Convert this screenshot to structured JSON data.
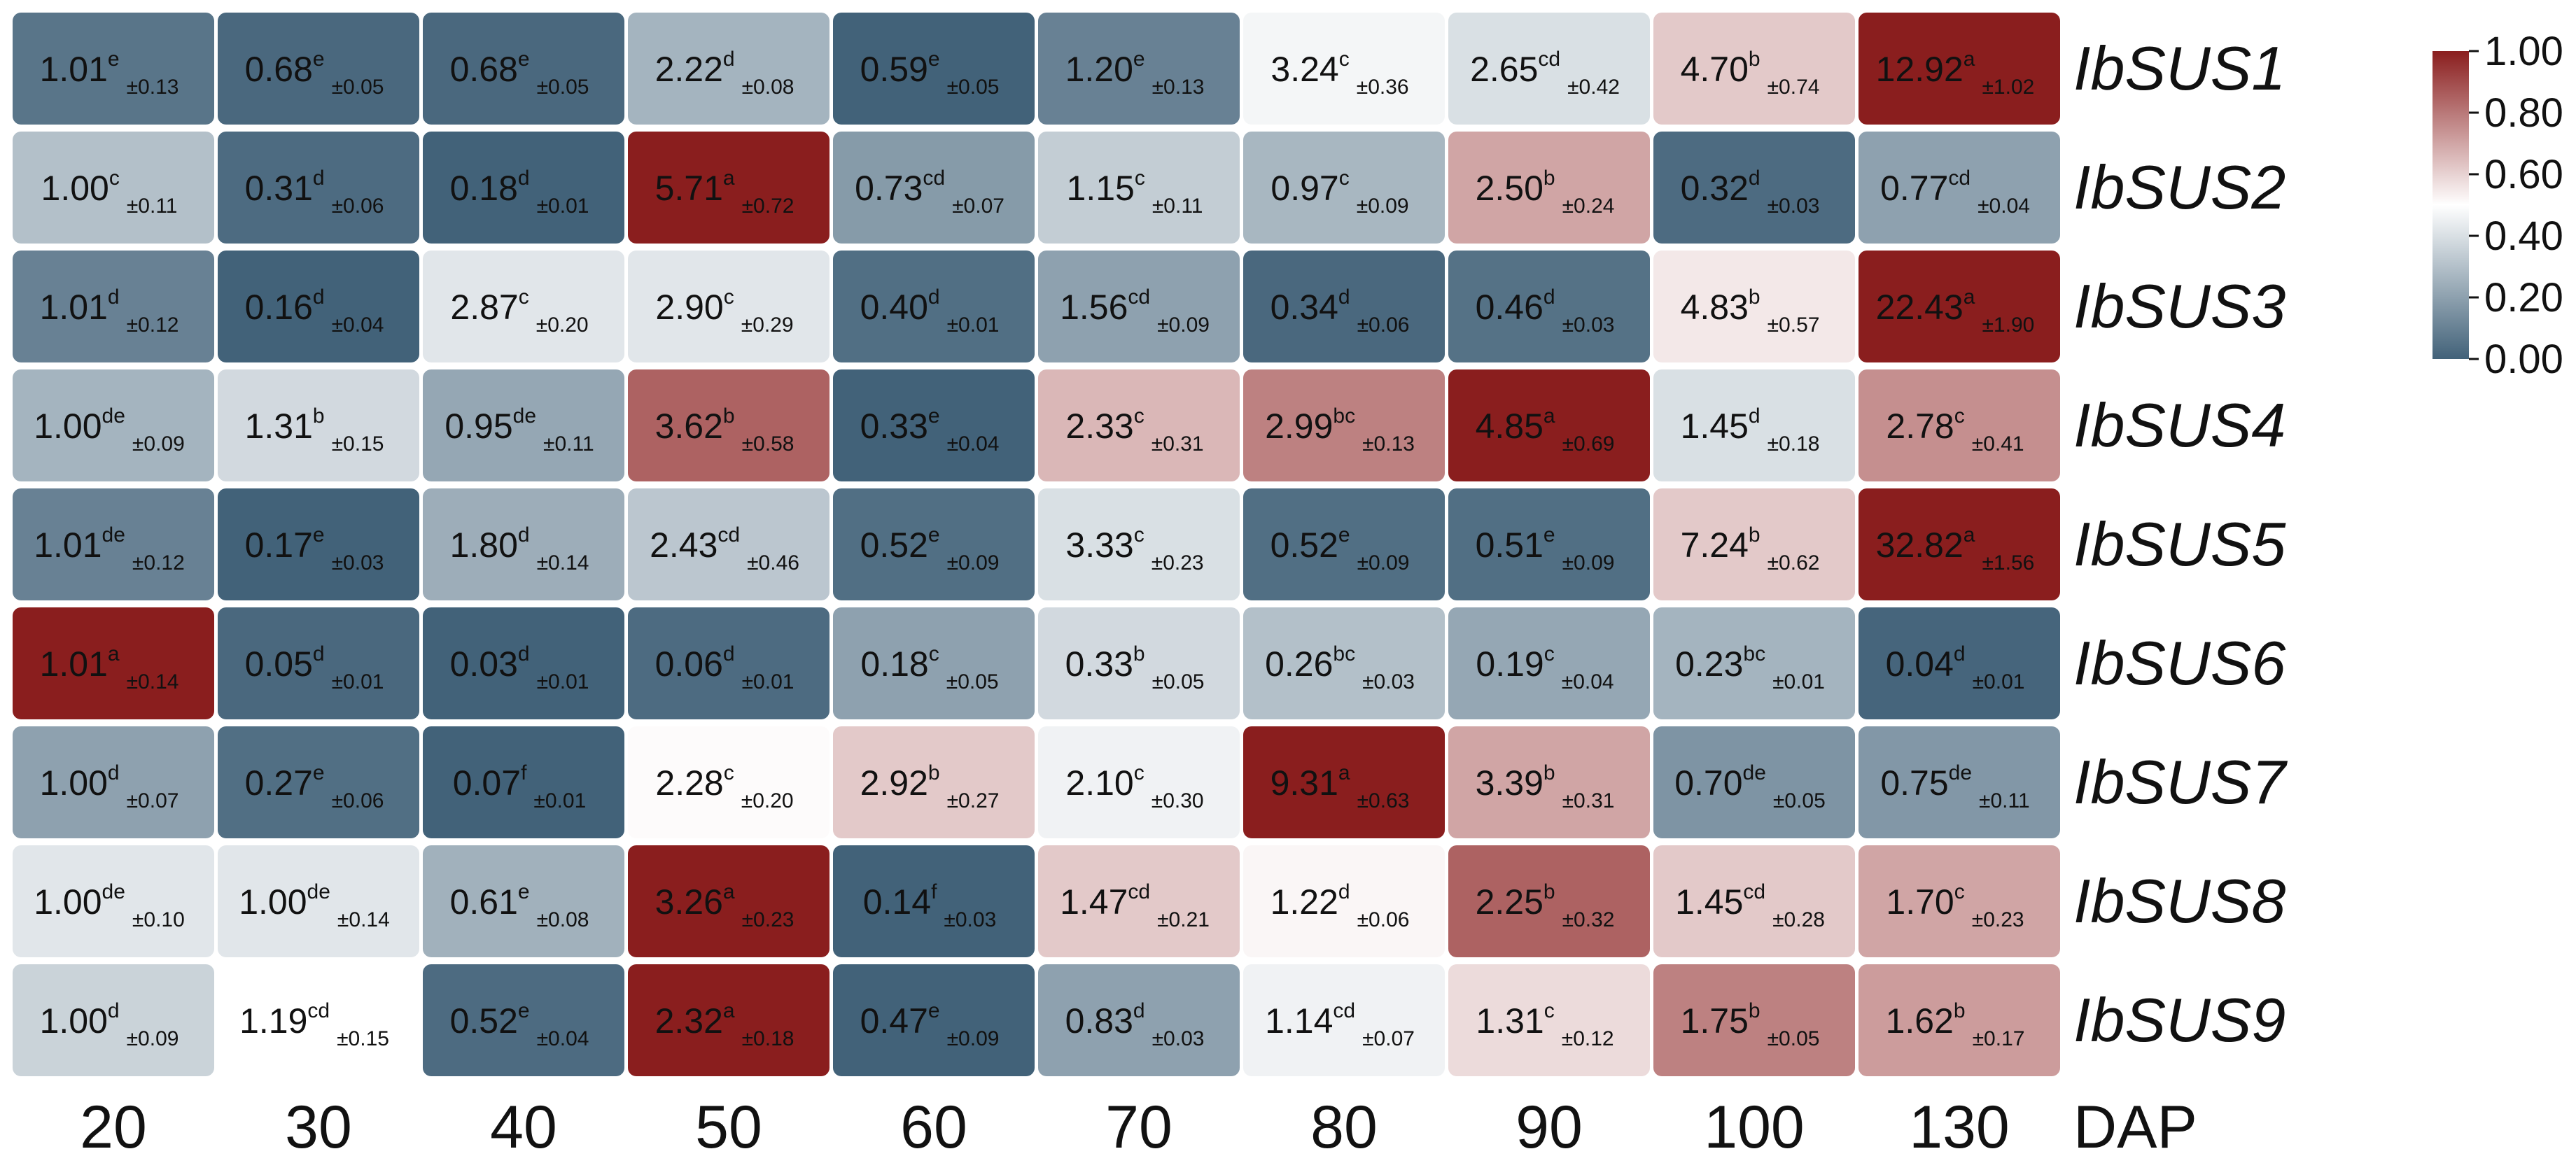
{
  "chart_data": {
    "type": "heatmap",
    "x_categories": [
      "20",
      "30",
      "40",
      "50",
      "60",
      "70",
      "80",
      "90",
      "100",
      "130"
    ],
    "x_axis_label": "DAP",
    "y_categories": [
      "IbSUS1",
      "IbSUS2",
      "IbSUS3",
      "IbSUS4",
      "IbSUS5",
      "IbSUS6",
      "IbSUS7",
      "IbSUS8",
      "IbSUS9"
    ],
    "colorbar": {
      "min": 0.0,
      "max": 1.0,
      "ticks": [
        "1.00",
        "0.80",
        "0.60",
        "0.40",
        "0.20",
        "0.00"
      ],
      "colors": [
        "#426279",
        "#ffffff",
        "#8a1e1e"
      ]
    },
    "rows": [
      {
        "gene": "IbSUS1",
        "cells": [
          {
            "value": "1.01",
            "sig": "e",
            "sd": "±0.13",
            "norm": 0.06
          },
          {
            "value": "0.68",
            "sig": "e",
            "sd": "±0.05",
            "norm": 0.02
          },
          {
            "value": "0.68",
            "sig": "e",
            "sd": "±0.05",
            "norm": 0.02
          },
          {
            "value": "2.22",
            "sig": "d",
            "sd": "±0.08",
            "norm": 0.26
          },
          {
            "value": "0.59",
            "sig": "e",
            "sd": "±0.05",
            "norm": 0.0
          },
          {
            "value": "1.20",
            "sig": "e",
            "sd": "±0.13",
            "norm": 0.1
          },
          {
            "value": "3.24",
            "sig": "c",
            "sd": "±0.36",
            "norm": 0.47
          },
          {
            "value": "2.65",
            "sig": "cd",
            "sd": "±0.42",
            "norm": 0.4
          },
          {
            "value": "4.70",
            "sig": "b",
            "sd": "±0.74",
            "norm": 0.62
          },
          {
            "value": "12.92",
            "sig": "a",
            "sd": "±1.02",
            "norm": 1.0
          }
        ]
      },
      {
        "gene": "IbSUS2",
        "cells": [
          {
            "value": "1.00",
            "sig": "c",
            "sd": "±0.11",
            "norm": 0.3
          },
          {
            "value": "0.31",
            "sig": "d",
            "sd": "±0.06",
            "norm": 0.03
          },
          {
            "value": "0.18",
            "sig": "d",
            "sd": "±0.01",
            "norm": 0.0
          },
          {
            "value": "5.71",
            "sig": "a",
            "sd": "±0.72",
            "norm": 1.0
          },
          {
            "value": "0.73",
            "sig": "cd",
            "sd": "±0.07",
            "norm": 0.18
          },
          {
            "value": "1.15",
            "sig": "c",
            "sd": "±0.11",
            "norm": 0.34
          },
          {
            "value": "0.97",
            "sig": "c",
            "sd": "±0.09",
            "norm": 0.27
          },
          {
            "value": "2.50",
            "sig": "b",
            "sd": "±0.24",
            "norm": 0.7
          },
          {
            "value": "0.32",
            "sig": "d",
            "sd": "±0.03",
            "norm": 0.03
          },
          {
            "value": "0.77",
            "sig": "cd",
            "sd": "±0.04",
            "norm": 0.2
          }
        ]
      },
      {
        "gene": "IbSUS3",
        "cells": [
          {
            "value": "1.01",
            "sig": "d",
            "sd": "±0.12",
            "norm": 0.1
          },
          {
            "value": "0.16",
            "sig": "d",
            "sd": "±0.04",
            "norm": 0.0
          },
          {
            "value": "2.87",
            "sig": "c",
            "sd": "±0.20",
            "norm": 0.42
          },
          {
            "value": "2.90",
            "sig": "c",
            "sd": "±0.29",
            "norm": 0.42
          },
          {
            "value": "0.40",
            "sig": "d",
            "sd": "±0.01",
            "norm": 0.04
          },
          {
            "value": "1.56",
            "sig": "cd",
            "sd": "±0.09",
            "norm": 0.2
          },
          {
            "value": "0.34",
            "sig": "d",
            "sd": "±0.06",
            "norm": 0.02
          },
          {
            "value": "0.46",
            "sig": "d",
            "sd": "±0.03",
            "norm": 0.05
          },
          {
            "value": "4.83",
            "sig": "b",
            "sd": "±0.57",
            "norm": 0.55
          },
          {
            "value": "22.43",
            "sig": "a",
            "sd": "±1.90",
            "norm": 1.0
          }
        ]
      },
      {
        "gene": "IbSUS4",
        "cells": [
          {
            "value": "1.00",
            "sig": "de",
            "sd": "±0.09",
            "norm": 0.26
          },
          {
            "value": "1.31",
            "sig": "b",
            "sd": "±0.15",
            "norm": 0.38
          },
          {
            "value": "0.95",
            "sig": "de",
            "sd": "±0.11",
            "norm": 0.22
          },
          {
            "value": "3.62",
            "sig": "b",
            "sd": "±0.58",
            "norm": 0.85
          },
          {
            "value": "0.33",
            "sig": "e",
            "sd": "±0.04",
            "norm": 0.0
          },
          {
            "value": "2.33",
            "sig": "c",
            "sd": "±0.31",
            "norm": 0.66
          },
          {
            "value": "2.99",
            "sig": "bc",
            "sd": "±0.13",
            "norm": 0.78
          },
          {
            "value": "4.85",
            "sig": "a",
            "sd": "±0.69",
            "norm": 1.0
          },
          {
            "value": "1.45",
            "sig": "d",
            "sd": "±0.18",
            "norm": 0.4
          },
          {
            "value": "2.78",
            "sig": "c",
            "sd": "±0.41",
            "norm": 0.75
          }
        ]
      },
      {
        "gene": "IbSUS5",
        "cells": [
          {
            "value": "1.01",
            "sig": "de",
            "sd": "±0.12",
            "norm": 0.1
          },
          {
            "value": "0.17",
            "sig": "e",
            "sd": "±0.03",
            "norm": 0.0
          },
          {
            "value": "1.80",
            "sig": "d",
            "sd": "±0.14",
            "norm": 0.24
          },
          {
            "value": "2.43",
            "sig": "cd",
            "sd": "±0.46",
            "norm": 0.32
          },
          {
            "value": "0.52",
            "sig": "e",
            "sd": "±0.09",
            "norm": 0.04
          },
          {
            "value": "3.33",
            "sig": "c",
            "sd": "±0.23",
            "norm": 0.4
          },
          {
            "value": "0.52",
            "sig": "e",
            "sd": "±0.09",
            "norm": 0.04
          },
          {
            "value": "0.51",
            "sig": "e",
            "sd": "±0.09",
            "norm": 0.04
          },
          {
            "value": "7.24",
            "sig": "b",
            "sd": "±0.62",
            "norm": 0.62
          },
          {
            "value": "32.82",
            "sig": "a",
            "sd": "±1.56",
            "norm": 1.0
          }
        ]
      },
      {
        "gene": "IbSUS6",
        "cells": [
          {
            "value": "1.01",
            "sig": "a",
            "sd": "±0.14",
            "norm": 1.0
          },
          {
            "value": "0.05",
            "sig": "d",
            "sd": "±0.01",
            "norm": 0.02
          },
          {
            "value": "0.03",
            "sig": "d",
            "sd": "±0.01",
            "norm": 0.0
          },
          {
            "value": "0.06",
            "sig": "d",
            "sd": "±0.01",
            "norm": 0.03
          },
          {
            "value": "0.18",
            "sig": "c",
            "sd": "±0.05",
            "norm": 0.2
          },
          {
            "value": "0.33",
            "sig": "b",
            "sd": "±0.05",
            "norm": 0.38
          },
          {
            "value": "0.26",
            "sig": "bc",
            "sd": "±0.03",
            "norm": 0.3
          },
          {
            "value": "0.19",
            "sig": "c",
            "sd": "±0.04",
            "norm": 0.22
          },
          {
            "value": "0.23",
            "sig": "bc",
            "sd": "±0.01",
            "norm": 0.26
          },
          {
            "value": "0.04",
            "sig": "d",
            "sd": "±0.01",
            "norm": 0.01
          }
        ]
      },
      {
        "gene": "IbSUS7",
        "cells": [
          {
            "value": "1.00",
            "sig": "d",
            "sd": "±0.07",
            "norm": 0.2
          },
          {
            "value": "0.27",
            "sig": "e",
            "sd": "±0.06",
            "norm": 0.04
          },
          {
            "value": "0.07",
            "sig": "f",
            "sd": "±0.01",
            "norm": 0.0
          },
          {
            "value": "2.28",
            "sig": "c",
            "sd": "±0.20",
            "norm": 0.51
          },
          {
            "value": "2.92",
            "sig": "b",
            "sd": "±0.27",
            "norm": 0.62
          },
          {
            "value": "2.10",
            "sig": "c",
            "sd": "±0.30",
            "norm": 0.46
          },
          {
            "value": "9.31",
            "sig": "a",
            "sd": "±0.63",
            "norm": 1.0
          },
          {
            "value": "3.39",
            "sig": "b",
            "sd": "±0.31",
            "norm": 0.7
          },
          {
            "value": "0.70",
            "sig": "de",
            "sd": "±0.05",
            "norm": 0.16
          },
          {
            "value": "0.75",
            "sig": "de",
            "sd": "±0.11",
            "norm": 0.17
          }
        ]
      },
      {
        "gene": "IbSUS8",
        "cells": [
          {
            "value": "1.00",
            "sig": "de",
            "sd": "±0.10",
            "norm": 0.42
          },
          {
            "value": "1.00",
            "sig": "de",
            "sd": "±0.14",
            "norm": 0.42
          },
          {
            "value": "0.61",
            "sig": "e",
            "sd": "±0.08",
            "norm": 0.25
          },
          {
            "value": "3.26",
            "sig": "a",
            "sd": "±0.23",
            "norm": 1.0
          },
          {
            "value": "0.14",
            "sig": "f",
            "sd": "±0.03",
            "norm": 0.0
          },
          {
            "value": "1.47",
            "sig": "cd",
            "sd": "±0.21",
            "norm": 0.62
          },
          {
            "value": "1.22",
            "sig": "d",
            "sd": "±0.06",
            "norm": 0.52
          },
          {
            "value": "2.25",
            "sig": "b",
            "sd": "±0.32",
            "norm": 0.85
          },
          {
            "value": "1.45",
            "sig": "cd",
            "sd": "±0.28",
            "norm": 0.62
          },
          {
            "value": "1.70",
            "sig": "c",
            "sd": "±0.23",
            "norm": 0.7
          }
        ]
      },
      {
        "gene": "IbSUS9",
        "cells": [
          {
            "value": "1.00",
            "sig": "d",
            "sd": "±0.09",
            "norm": 0.36
          },
          {
            "value": "1.19",
            "sig": "cd",
            "sd": "±0.15",
            "norm": 0.5
          },
          {
            "value": "0.52",
            "sig": "e",
            "sd": "±0.04",
            "norm": 0.03
          },
          {
            "value": "2.32",
            "sig": "a",
            "sd": "±0.18",
            "norm": 1.0
          },
          {
            "value": "0.47",
            "sig": "e",
            "sd": "±0.09",
            "norm": 0.0
          },
          {
            "value": "0.83",
            "sig": "d",
            "sd": "±0.03",
            "norm": 0.2
          },
          {
            "value": "1.14",
            "sig": "cd",
            "sd": "±0.07",
            "norm": 0.46
          },
          {
            "value": "1.31",
            "sig": "c",
            "sd": "±0.12",
            "norm": 0.58
          },
          {
            "value": "1.75",
            "sig": "b",
            "sd": "±0.05",
            "norm": 0.78
          },
          {
            "value": "1.62",
            "sig": "b",
            "sd": "±0.17",
            "norm": 0.72
          }
        ]
      }
    ]
  }
}
